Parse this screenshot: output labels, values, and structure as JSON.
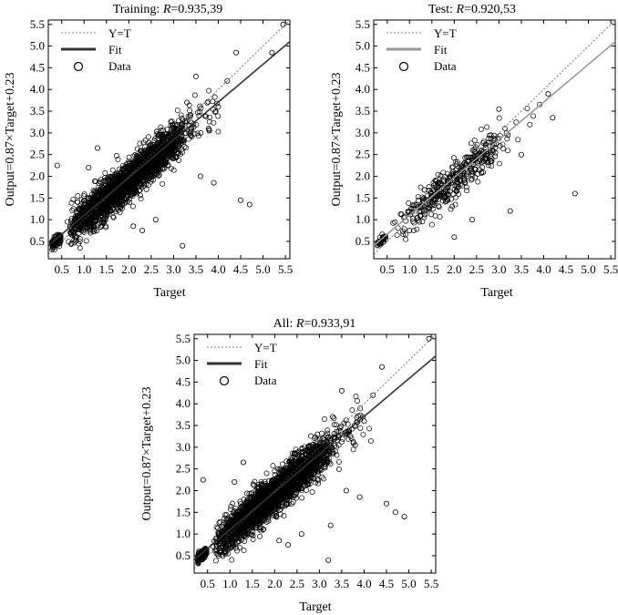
{
  "chart_data": [
    {
      "type": "scatter",
      "title_prefix": "Training: ",
      "title_r": "R",
      "title_value": "=0.935,39",
      "xlabel": "Target",
      "ylabel": "Output=0.87×Target+0.23",
      "xlim": [
        0.2,
        5.6
      ],
      "ylim": [
        0.1,
        5.6
      ],
      "xticks": [
        "0.5",
        "1.0",
        "1.5",
        "2.0",
        "2.5",
        "3.0",
        "3.5",
        "4.0",
        "4.5",
        "5.0",
        "5.5"
      ],
      "yticks": [
        "0.5",
        "1.0",
        "1.5",
        "2.0",
        "2.5",
        "3.0",
        "3.5",
        "4.0",
        "4.5",
        "5.0",
        "5.5"
      ],
      "fit": {
        "slope": 0.87,
        "intercept": 0.23,
        "color": "#333333"
      },
      "legend": [
        "Y=T",
        "Fit",
        "Data"
      ],
      "legend_position": "top-left",
      "grid": false,
      "point_count_shown": 2600,
      "outliers": [
        [
          0.4,
          2.25
        ],
        [
          1.1,
          2.2
        ],
        [
          1.3,
          2.65
        ],
        [
          2.1,
          0.85
        ],
        [
          2.3,
          0.75
        ],
        [
          2.6,
          1.0
        ],
        [
          3.2,
          0.4
        ],
        [
          3.6,
          2.0
        ],
        [
          3.9,
          1.85
        ],
        [
          4.2,
          4.2
        ],
        [
          4.4,
          4.85
        ],
        [
          4.5,
          1.45
        ],
        [
          4.7,
          1.35
        ],
        [
          5.2,
          4.85
        ],
        [
          5.45,
          5.5
        ],
        [
          3.3,
          3.7
        ],
        [
          3.8,
          3.05
        ],
        [
          4.0,
          3.6
        ],
        [
          3.5,
          4.3
        ],
        [
          3.1,
          3.1
        ]
      ]
    },
    {
      "type": "scatter",
      "title_prefix": "Test: ",
      "title_r": "R",
      "title_value": "=0.920,53",
      "xlabel": "Target",
      "ylabel": "Output=0.87×Target+0.23",
      "xlim": [
        0.2,
        5.6
      ],
      "ylim": [
        0.1,
        5.6
      ],
      "xticks": [
        "0.5",
        "1.0",
        "1.5",
        "2.0",
        "2.5",
        "3.0",
        "3.5",
        "4.0",
        "4.5",
        "5.0",
        "5.5"
      ],
      "yticks": [
        "0.5",
        "1.0",
        "1.5",
        "2.0",
        "2.5",
        "3.0",
        "3.5",
        "4.0",
        "4.5",
        "5.0",
        "5.5"
      ],
      "fit": {
        "slope": 0.87,
        "intercept": 0.23,
        "color": "#999999"
      },
      "legend": [
        "Y=T",
        "Fit",
        "Data"
      ],
      "legend_position": "top-left",
      "grid": false,
      "point_count_shown": 430,
      "outliers": [
        [
          3.0,
          3.55
        ],
        [
          3.2,
          2.95
        ],
        [
          3.25,
          1.2
        ],
        [
          4.1,
          3.9
        ],
        [
          4.2,
          3.35
        ],
        [
          4.7,
          1.6
        ],
        [
          2.4,
          1.0
        ],
        [
          1.0,
          0.75
        ],
        [
          2.0,
          0.6
        ],
        [
          3.5,
          2.5
        ]
      ]
    },
    {
      "type": "scatter",
      "title_prefix": "All: ",
      "title_r": "R",
      "title_value": "=0.933,91",
      "xlabel": "Target",
      "ylabel": "Output=0.87×Target+0.23",
      "xlim": [
        0.2,
        5.6
      ],
      "ylim": [
        0.1,
        5.6
      ],
      "xticks": [
        "0.5",
        "1.0",
        "1.5",
        "2.0",
        "2.5",
        "3.0",
        "3.5",
        "4.0",
        "4.5",
        "5.0",
        "5.5"
      ],
      "yticks": [
        "0.5",
        "1.0",
        "1.5",
        "2.0",
        "2.5",
        "3.0",
        "3.5",
        "4.0",
        "4.5",
        "5.0",
        "5.5"
      ],
      "fit": {
        "slope": 0.87,
        "intercept": 0.23,
        "color": "#333333"
      },
      "legend": [
        "Y=T",
        "Fit",
        "Data"
      ],
      "legend_position": "top-left",
      "grid": false,
      "point_count_shown": 3000,
      "outliers": [
        [
          0.4,
          2.25
        ],
        [
          1.1,
          2.2
        ],
        [
          1.3,
          2.65
        ],
        [
          2.1,
          0.85
        ],
        [
          2.3,
          0.75
        ],
        [
          2.6,
          1.0
        ],
        [
          3.2,
          0.4
        ],
        [
          3.6,
          2.0
        ],
        [
          3.9,
          1.85
        ],
        [
          4.2,
          4.2
        ],
        [
          4.4,
          4.85
        ],
        [
          4.5,
          1.7
        ],
        [
          4.7,
          1.5
        ],
        [
          4.9,
          1.4
        ],
        [
          5.45,
          5.5
        ],
        [
          3.3,
          3.7
        ],
        [
          3.8,
          3.05
        ],
        [
          4.0,
          3.6
        ],
        [
          3.5,
          4.3
        ],
        [
          3.1,
          3.1
        ],
        [
          3.25,
          1.2
        ]
      ]
    }
  ]
}
